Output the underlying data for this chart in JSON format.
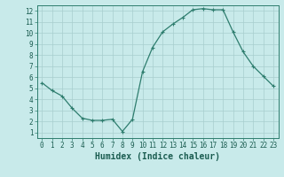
{
  "xlabel": "Humidex (Indice chaleur)",
  "x": [
    0,
    1,
    2,
    3,
    4,
    5,
    6,
    7,
    8,
    9,
    10,
    11,
    12,
    13,
    14,
    15,
    16,
    17,
    18,
    19,
    20,
    21,
    22,
    23
  ],
  "y": [
    5.5,
    4.8,
    4.3,
    3.2,
    2.3,
    2.1,
    2.1,
    2.2,
    1.1,
    2.2,
    6.5,
    8.7,
    10.1,
    10.8,
    11.4,
    12.1,
    12.2,
    12.1,
    12.1,
    10.1,
    8.3,
    7.0,
    6.1,
    5.2
  ],
  "line_color": "#2e7d6e",
  "marker": "+",
  "marker_size": 3,
  "marker_lw": 0.8,
  "line_width": 0.9,
  "bg_color": "#c8eaea",
  "grid_color": "#a8cece",
  "xlim": [
    -0.5,
    23.5
  ],
  "ylim": [
    0.5,
    12.5
  ],
  "xticks": [
    0,
    1,
    2,
    3,
    4,
    5,
    6,
    7,
    8,
    9,
    10,
    11,
    12,
    13,
    14,
    15,
    16,
    17,
    18,
    19,
    20,
    21,
    22,
    23
  ],
  "yticks": [
    1,
    2,
    3,
    4,
    5,
    6,
    7,
    8,
    9,
    10,
    11,
    12
  ],
  "tick_fontsize": 5.5,
  "xlabel_fontsize": 7.0,
  "label_color": "#1a5c50",
  "spine_color": "#2e7d6e"
}
